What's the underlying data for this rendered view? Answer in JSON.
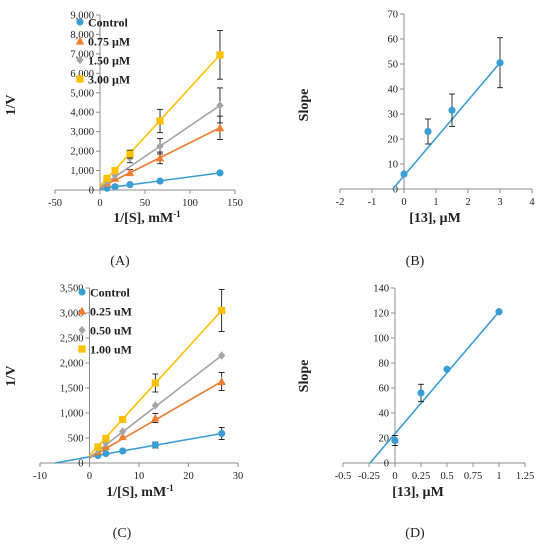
{
  "colors": {
    "control": "#3a9dd3",
    "series2": "#ed7d31",
    "series3": "#a5a5a5",
    "series4": "#ffc000",
    "fit": "#3a9dd3",
    "axis": "#8c8c8c",
    "errorbar": "#000000"
  },
  "chart_data": [
    {
      "panel_label": "(A)",
      "type": "scatter",
      "xlabel": "1/[S], mM",
      "xlabel_sup": "-1",
      "ylabel": "1/V",
      "xlim": [
        -50,
        150
      ],
      "xticks": [
        -50,
        0,
        50,
        100,
        150
      ],
      "ylim": [
        0,
        9000
      ],
      "yticks": [
        0,
        1000,
        2000,
        3000,
        4000,
        5000,
        6000,
        7000,
        8000,
        9000
      ],
      "ytick_labels": [
        "0",
        "1,000",
        "2,000",
        "3,000",
        "4,000",
        "5,000",
        "6,000",
        "7,000",
        "8,000",
        "9,000"
      ],
      "legend_position": "top-left",
      "series": [
        {
          "name": "Control",
          "marker": "circle",
          "color_key": "control",
          "x": [
            7.7,
            16.7,
            33.3,
            66.7,
            133.3
          ],
          "y": [
            90,
            170,
            280,
            460,
            880
          ],
          "err": [
            0,
            0,
            0,
            0,
            0
          ],
          "fit": {
            "x0": 0,
            "x1": 133.3,
            "y0": 60,
            "y1": 880
          }
        },
        {
          "name": "0.75 µM",
          "marker": "triangle",
          "color_key": "series2",
          "x": [
            7.7,
            16.7,
            33.3,
            66.7,
            133.3
          ],
          "y": [
            360,
            600,
            900,
            1650,
            3200
          ],
          "err": [
            0,
            0,
            150,
            300,
            600
          ],
          "fit": {
            "x0": 0,
            "x1": 133.3,
            "y0": 120,
            "y1": 3200
          }
        },
        {
          "name": "1.50 µM",
          "marker": "diamond",
          "color_key": "series3",
          "x": [
            7.7,
            16.7,
            33.3,
            66.7,
            133.3
          ],
          "y": [
            440,
            750,
            1650,
            2250,
            4350
          ],
          "err": [
            0,
            0,
            250,
            400,
            900
          ],
          "fit": {
            "x0": 0,
            "x1": 133.3,
            "y0": 150,
            "y1": 4350
          }
        },
        {
          "name": "3.00 µM",
          "marker": "square",
          "color_key": "series4",
          "x": [
            7.7,
            16.7,
            33.3,
            66.7,
            133.3
          ],
          "y": [
            600,
            1000,
            1850,
            3550,
            6950
          ],
          "err": [
            0,
            0,
            200,
            600,
            1250
          ],
          "fit": {
            "x0": 0,
            "x1": 133.3,
            "y0": 200,
            "y1": 6950
          }
        }
      ]
    },
    {
      "panel_label": "(B)",
      "type": "scatter",
      "xlabel": "[13], µM",
      "ylabel": "Slope",
      "xlim": [
        -2,
        4
      ],
      "xticks": [
        -2,
        -1,
        0,
        1,
        2,
        3,
        4
      ],
      "ylim": [
        0,
        70
      ],
      "yticks": [
        0,
        10,
        20,
        30,
        40,
        50,
        60,
        70
      ],
      "series": [
        {
          "name": "",
          "marker": "circle",
          "color_key": "control",
          "x": [
            0,
            0.75,
            1.5,
            3.0
          ],
          "y": [
            6,
            23,
            31.5,
            50.5
          ],
          "err": [
            0,
            5,
            6.5,
            10
          ],
          "fit": {
            "x0": -0.35,
            "x1": 3.0,
            "y0": 0,
            "y1": 50.5
          }
        }
      ]
    },
    {
      "panel_label": "(C)",
      "type": "scatter",
      "xlabel": "1/[S], mM",
      "xlabel_sup": "-1",
      "ylabel": "1/V",
      "xlim": [
        -10,
        30
      ],
      "xticks": [
        -10,
        0,
        10,
        20,
        30
      ],
      "ylim": [
        0,
        3500
      ],
      "yticks": [
        0,
        500,
        1000,
        1500,
        2000,
        2500,
        3000,
        3500
      ],
      "ytick_labels": [
        "0",
        "500",
        "1,000",
        "1,500",
        "2,000",
        "2,500",
        "3,000",
        "3,500"
      ],
      "legend_position": "top-left",
      "series": [
        {
          "name": "Control",
          "marker": "circle",
          "color_key": "control",
          "x": [
            1.7,
            3.3,
            6.7,
            13.3,
            26.7
          ],
          "y": [
            150,
            190,
            240,
            360,
            590
          ],
          "err": [
            0,
            0,
            0,
            60,
            120
          ],
          "fit": {
            "x0": -7,
            "x1": 26.7,
            "y0": 0,
            "y1": 590
          }
        },
        {
          "name": "0.25 uM",
          "marker": "triangle",
          "color_key": "series2",
          "x": [
            1.7,
            3.3,
            6.7,
            13.3,
            26.7
          ],
          "y": [
            230,
            330,
            530,
            900,
            1630
          ],
          "err": [
            0,
            0,
            0,
            90,
            180
          ],
          "fit": {
            "x0": 0,
            "x1": 26.7,
            "y0": 100,
            "y1": 1630
          }
        },
        {
          "name": "0.50 uM",
          "marker": "diamond",
          "color_key": "series3",
          "x": [
            1.7,
            3.3,
            6.7,
            13.3,
            26.7
          ],
          "y": [
            270,
            400,
            630,
            1150,
            2150
          ],
          "err": [
            0,
            0,
            0,
            0,
            0
          ],
          "fit": {
            "x0": 0,
            "x1": 26.7,
            "y0": 110,
            "y1": 2150
          }
        },
        {
          "name": "1.00 uM",
          "marker": "square",
          "color_key": "series4",
          "x": [
            1.7,
            3.3,
            6.7,
            13.3,
            26.7
          ],
          "y": [
            320,
            490,
            870,
            1600,
            3050
          ],
          "err": [
            0,
            0,
            0,
            180,
            420
          ],
          "fit": {
            "x0": 0,
            "x1": 26.7,
            "y0": 150,
            "y1": 3050
          }
        }
      ]
    },
    {
      "panel_label": "(D)",
      "type": "scatter",
      "xlabel": "[13], µM",
      "ylabel": "Slope",
      "xlim": [
        -0.5,
        1.25
      ],
      "xticks": [
        -0.5,
        -0.25,
        0,
        0.25,
        0.5,
        0.75,
        1,
        1.25
      ],
      "ylim": [
        0,
        140
      ],
      "yticks": [
        0,
        20,
        40,
        60,
        80,
        100,
        120,
        140
      ],
      "series": [
        {
          "name": "",
          "marker": "circle",
          "color_key": "control",
          "x": [
            0,
            0.25,
            0.5,
            1.0
          ],
          "y": [
            18,
            56,
            75,
            121
          ],
          "err": [
            4,
            7,
            0,
            0
          ],
          "fit": {
            "x0": -0.24,
            "x1": 1.0,
            "y0": 0,
            "y1": 121
          }
        }
      ]
    }
  ]
}
